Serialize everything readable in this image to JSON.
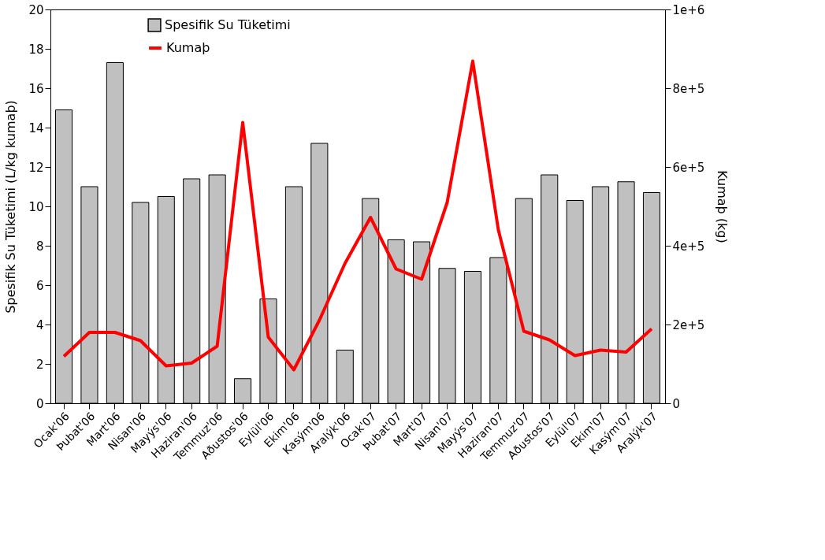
{
  "chart_data": {
    "type": "bar",
    "categories": [
      "Ocak'06",
      "Þubat'06",
      "Mart'06",
      "Nisan'06",
      "Mayýs'06",
      "Haziran'06",
      "Temmuz'06",
      "Aðustos'06",
      "Eylül'06",
      "Ekim'06",
      "Kasým'06",
      "Aralýk'06",
      "Ocak'07",
      "Þubat'07",
      "Mart'07",
      "Nisan'07",
      "Mayýs'07",
      "Haziran'07",
      "Temmuz'07",
      "Aðustos'07",
      "Eylül'07",
      "Ekim'07",
      "Kasým'07",
      "Aralýk'07"
    ],
    "series": [
      {
        "name": "Spesifik Su Tüketimi",
        "color": "#c0c0c0",
        "values": [
          14.9,
          11.0,
          17.3,
          10.2,
          10.5,
          11.4,
          11.6,
          1.25,
          5.3,
          11.0,
          13.2,
          2.7,
          10.4,
          8.3,
          8.2,
          6.85,
          6.7,
          7.4,
          10.4,
          11.6,
          10.3,
          11.0,
          11.25,
          10.7
        ]
      },
      {
        "name": "Kumaþ",
        "type": "line",
        "axis": "y2",
        "color": "#ff0000",
        "values": [
          119000,
          180000,
          180000,
          159000,
          95000,
          102000,
          145000,
          713000,
          168000,
          85000,
          211000,
          355000,
          472000,
          341000,
          315000,
          510000,
          869000,
          441000,
          183000,
          161000,
          121000,
          135000,
          130000,
          189000
        ]
      }
    ],
    "ylabel": "Spesifik Su Tüketimi (L/kg kumaþ)",
    "y2label": "Kumaþ (kg)",
    "ylim": [
      0,
      20
    ],
    "yticks": [
      0,
      2,
      4,
      6,
      8,
      10,
      12,
      14,
      16,
      18,
      20
    ],
    "y2lim": [
      0,
      1000000
    ],
    "y2ticks": [
      0,
      {
        "value": 200000,
        "label": "2e+5"
      },
      {
        "value": 400000,
        "label": "4e+5"
      },
      {
        "value": 600000,
        "label": "6e+5"
      },
      {
        "value": 800000,
        "label": "8e+5"
      },
      {
        "value": 1000000,
        "label": "1e+6"
      }
    ],
    "legend": "top left",
    "grid": false
  }
}
